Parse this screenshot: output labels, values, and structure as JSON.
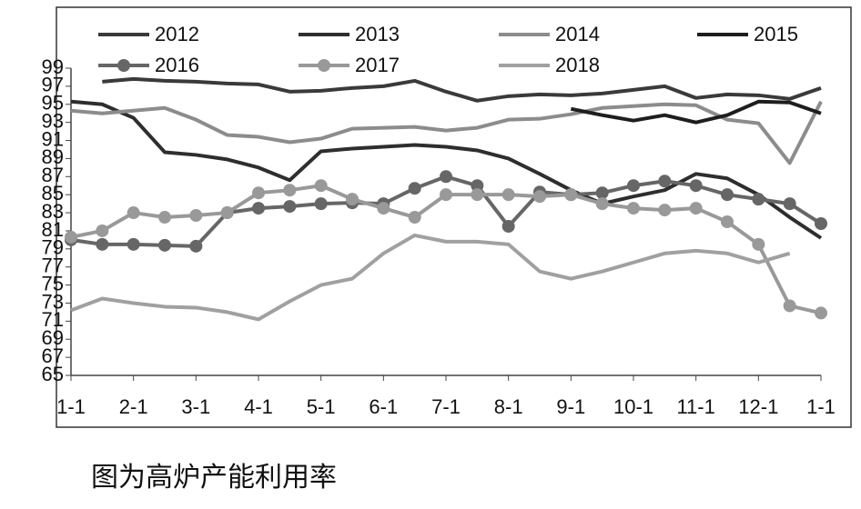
{
  "chart_data": {
    "type": "line",
    "caption": "图为高炉产能利用率",
    "x": [
      0,
      0.5,
      1,
      1.5,
      2,
      2.5,
      3,
      3.5,
      4,
      4.5,
      5,
      5.5,
      6,
      6.5,
      7,
      7.5,
      8,
      8.5,
      9,
      9.5,
      10,
      10.5,
      11,
      11.5,
      12
    ],
    "xlim": [
      0,
      12
    ],
    "xticks": [
      {
        "value": 0,
        "label": "1-1"
      },
      {
        "value": 1,
        "label": "2-1"
      },
      {
        "value": 2,
        "label": "3-1"
      },
      {
        "value": 3,
        "label": "4-1"
      },
      {
        "value": 4,
        "label": "5-1"
      },
      {
        "value": 5,
        "label": "6-1"
      },
      {
        "value": 6,
        "label": "7-1"
      },
      {
        "value": 7,
        "label": "8-1"
      },
      {
        "value": 8,
        "label": "9-1"
      },
      {
        "value": 9,
        "label": "10-1"
      },
      {
        "value": 10,
        "label": "11-1"
      },
      {
        "value": 11,
        "label": "12-1"
      },
      {
        "value": 12,
        "label": "1-1"
      }
    ],
    "ylim": [
      65,
      99
    ],
    "yticks": [
      65,
      67,
      69,
      71,
      73,
      75,
      77,
      79,
      81,
      83,
      85,
      87,
      89,
      91,
      93,
      95,
      97,
      99
    ],
    "series": [
      {
        "name": "2012",
        "color": "#3a3a3a",
        "values": [
          null,
          97.5,
          97.8,
          97.6,
          97.5,
          97.3,
          97.2,
          96.4,
          96.5,
          96.8,
          97.0,
          97.6,
          96.4,
          95.4,
          95.9,
          96.1,
          96.0,
          96.2,
          96.6,
          97.0,
          95.7,
          96.1,
          96.0,
          95.6,
          96.8
        ]
      },
      {
        "name": "2013",
        "color": "#2e2e2e",
        "values": [
          95.3,
          95.0,
          93.5,
          89.7,
          89.4,
          88.9,
          88.0,
          86.6,
          89.8,
          90.1,
          90.3,
          90.5,
          90.3,
          89.9,
          89.0,
          87.3,
          85.5,
          84.0,
          84.8,
          85.5,
          87.3,
          86.8,
          85.0,
          82.5,
          80.2
        ]
      },
      {
        "name": "2014",
        "color": "#8c8c8c",
        "values": [
          94.3,
          94.0,
          94.3,
          94.6,
          93.3,
          91.6,
          91.4,
          90.8,
          91.2,
          92.3,
          92.4,
          92.5,
          92.1,
          92.4,
          93.3,
          93.4,
          93.9,
          94.6,
          94.8,
          95.0,
          94.9,
          93.3,
          92.9,
          88.5,
          95.3
        ]
      },
      {
        "name": "2015",
        "color": "#1e1e1e",
        "values": [
          null,
          null,
          null,
          null,
          null,
          null,
          null,
          null,
          null,
          null,
          null,
          null,
          null,
          null,
          null,
          null,
          94.5,
          93.8,
          93.2,
          93.8,
          93.0,
          93.8,
          95.3,
          95.2,
          94.0
        ]
      },
      {
        "name": "2016",
        "color": "#666666",
        "marker": "circle",
        "values": [
          80.0,
          79.5,
          79.5,
          79.4,
          79.3,
          83.0,
          83.5,
          83.7,
          84.0,
          84.1,
          84.0,
          85.7,
          87.0,
          86.0,
          81.5,
          85.3,
          85.0,
          85.2,
          86.0,
          86.5,
          86.0,
          85.0,
          84.5,
          84.0,
          81.8
        ]
      },
      {
        "name": "2017",
        "color": "#999999",
        "marker": "circle",
        "values": [
          80.3,
          81.0,
          83.0,
          82.5,
          82.7,
          83.0,
          85.2,
          85.5,
          86.0,
          84.5,
          83.5,
          82.5,
          85.0,
          85.0,
          85.0,
          84.8,
          85.0,
          84.0,
          83.5,
          83.3,
          83.5,
          82.0,
          79.5,
          72.7,
          71.9
        ]
      },
      {
        "name": "2018",
        "color": "#a0a0a0",
        "values": [
          72.2,
          73.5,
          73.0,
          72.6,
          72.5,
          72.0,
          71.2,
          73.2,
          75.0,
          75.7,
          78.5,
          80.5,
          79.8,
          79.8,
          79.5,
          76.5,
          75.7,
          76.5,
          77.5,
          78.5,
          78.8,
          78.5,
          77.5,
          78.5,
          null
        ]
      }
    ]
  }
}
